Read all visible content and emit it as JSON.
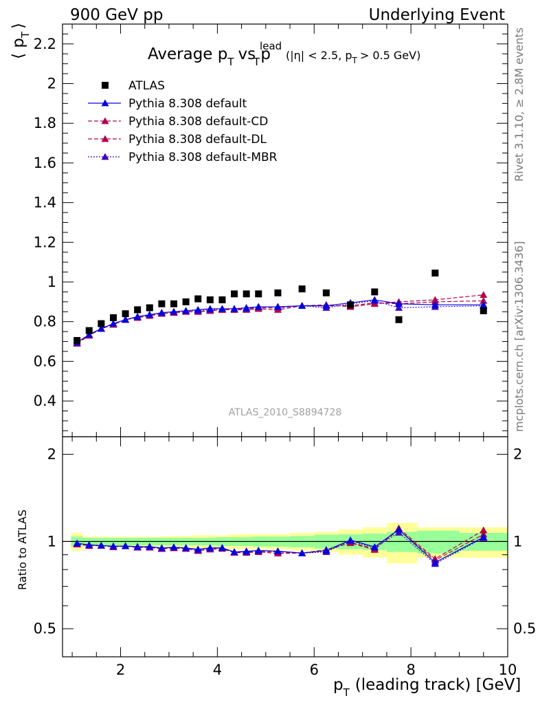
{
  "header": {
    "left": "900 GeV pp",
    "right": "Underlying Event"
  },
  "side_labels": {
    "rivet": "Rivet 3.1.10, ≥ 2.8M events",
    "mcplots": "mcplots.cern.ch [arXiv:1306.3436]"
  },
  "plot_title": {
    "main": "Average p",
    "main_sub": "T",
    "vs": "vs p",
    "vs_sup": "lead",
    "vs_sub": "T",
    "cuts_a": "(|η| < 2.5, p",
    "cuts_sub": "T",
    "cuts_b": "> 0.5 GeV)"
  },
  "watermark": "ATLAS_2010_S8894728",
  "axis": {
    "ylabel_main": "⟨ p",
    "ylabel_main_sub": "T",
    "ylabel_main_close": "⟩",
    "ylabel_ratio": "Ratio to ATLAS",
    "xlabel": "p",
    "xlabel_sub": "T",
    "xlabel_rest": "(leading track) [GeV]"
  },
  "colors": {
    "atlas": "#000000",
    "default": "#0000e0",
    "cd": "#b0004c",
    "dl": "#b0004c",
    "mbr": "#4000c0",
    "band_inner": "#99ff99",
    "band_outer": "#ffff99"
  },
  "chart_data": {
    "type": "scatter",
    "x": [
      1.1,
      1.35,
      1.6,
      1.85,
      2.1,
      2.35,
      2.6,
      2.85,
      3.1,
      3.35,
      3.6,
      3.85,
      4.1,
      4.35,
      4.6,
      4.85,
      5.25,
      5.75,
      6.25,
      6.75,
      7.25,
      7.75,
      8.5,
      9.5
    ],
    "ylim_main": [
      0.22,
      2.3
    ],
    "ylim_ratio": [
      0.4,
      2.3
    ],
    "xlim": [
      0.8,
      10.0
    ],
    "x_ticks": [
      2,
      4,
      6,
      8,
      10
    ],
    "y_ticks_main": [
      0.4,
      0.6,
      0.8,
      1,
      1.2,
      1.4,
      1.6,
      1.8,
      2,
      2.2
    ],
    "y_ticks_ratio": [
      0.5,
      1,
      2
    ],
    "ratio_log_scale": true,
    "legend_position": "top-left",
    "series": [
      {
        "name": "ATLAS",
        "style": "data",
        "values": [
          0.705,
          0.755,
          0.79,
          0.82,
          0.84,
          0.86,
          0.87,
          0.89,
          0.89,
          0.9,
          0.915,
          0.91,
          0.91,
          0.94,
          0.94,
          0.94,
          0.945,
          0.965,
          0.945,
          0.885,
          0.95,
          0.81,
          1.045,
          0.855
        ]
      },
      {
        "name": "Pythia 8.308 default",
        "style": "solid",
        "values": [
          0.695,
          0.735,
          0.765,
          0.79,
          0.81,
          0.825,
          0.835,
          0.845,
          0.85,
          0.855,
          0.86,
          0.865,
          0.865,
          0.865,
          0.87,
          0.875,
          0.875,
          0.88,
          0.88,
          0.895,
          0.91,
          0.89,
          0.885,
          0.885
        ]
      },
      {
        "name": "Pythia 8.308 default-CD",
        "style": "dashed",
        "values": [
          0.69,
          0.73,
          0.765,
          0.785,
          0.81,
          0.82,
          0.83,
          0.84,
          0.845,
          0.85,
          0.85,
          0.855,
          0.86,
          0.86,
          0.86,
          0.865,
          0.86,
          0.88,
          0.885,
          0.875,
          0.89,
          0.9,
          0.91,
          0.935
        ]
      },
      {
        "name": "Pythia 8.308 default-DL",
        "style": "dashed",
        "values": [
          0.69,
          0.73,
          0.765,
          0.785,
          0.81,
          0.82,
          0.83,
          0.84,
          0.845,
          0.85,
          0.85,
          0.855,
          0.86,
          0.86,
          0.865,
          0.87,
          0.87,
          0.88,
          0.88,
          0.88,
          0.895,
          0.89,
          0.9,
          0.905
        ]
      },
      {
        "name": "Pythia 8.308 default-MBR",
        "style": "dotted",
        "values": [
          0.695,
          0.735,
          0.765,
          0.79,
          0.81,
          0.825,
          0.835,
          0.845,
          0.85,
          0.855,
          0.855,
          0.86,
          0.865,
          0.865,
          0.865,
          0.875,
          0.875,
          0.88,
          0.87,
          0.89,
          0.905,
          0.87,
          0.875,
          0.88
        ]
      }
    ],
    "ratio_band_inner": [
      0.04,
      0.03,
      0.03,
      0.03,
      0.03,
      0.03,
      0.03,
      0.03,
      0.03,
      0.03,
      0.03,
      0.03,
      0.035,
      0.035,
      0.035,
      0.04,
      0.04,
      0.045,
      0.055,
      0.06,
      0.065,
      0.08,
      0.09,
      0.07
    ],
    "ratio_band_outer": [
      0.07,
      0.04,
      0.04,
      0.04,
      0.04,
      0.04,
      0.04,
      0.04,
      0.045,
      0.045,
      0.05,
      0.05,
      0.05,
      0.06,
      0.06,
      0.06,
      0.06,
      0.07,
      0.08,
      0.1,
      0.12,
      0.16,
      0.12,
      0.12
    ]
  }
}
